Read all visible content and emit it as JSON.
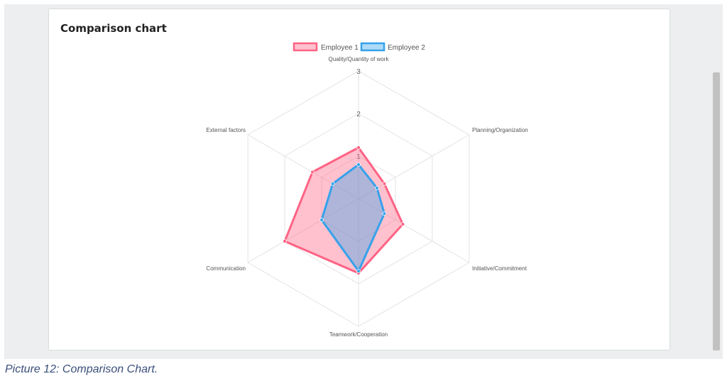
{
  "card": {
    "title": "Comparison chart"
  },
  "caption": "Picture 12: Comparison Chart.",
  "chart_data": {
    "type": "radar",
    "title": "",
    "categories": [
      "Quality/Quantity of work",
      "Planning/Organization",
      "Initiative/Commitment",
      "Teamwork/Cooperation",
      "Communication",
      "External factors"
    ],
    "rlim": [
      0,
      3
    ],
    "ticks": [
      1,
      2,
      3
    ],
    "legend_position": "top",
    "series": [
      {
        "name": "Employee 1",
        "values": [
          1.2,
          0.7,
          1.2,
          1.75,
          2.0,
          1.25
        ],
        "stroke": "#ff6384",
        "fill": "rgba(255,99,132,0.4)"
      },
      {
        "name": "Employee 2",
        "values": [
          0.8,
          0.5,
          0.7,
          1.7,
          1.0,
          0.7
        ],
        "stroke": "#36a2eb",
        "fill": "rgba(54,162,235,0.4)"
      }
    ],
    "grid": true
  }
}
